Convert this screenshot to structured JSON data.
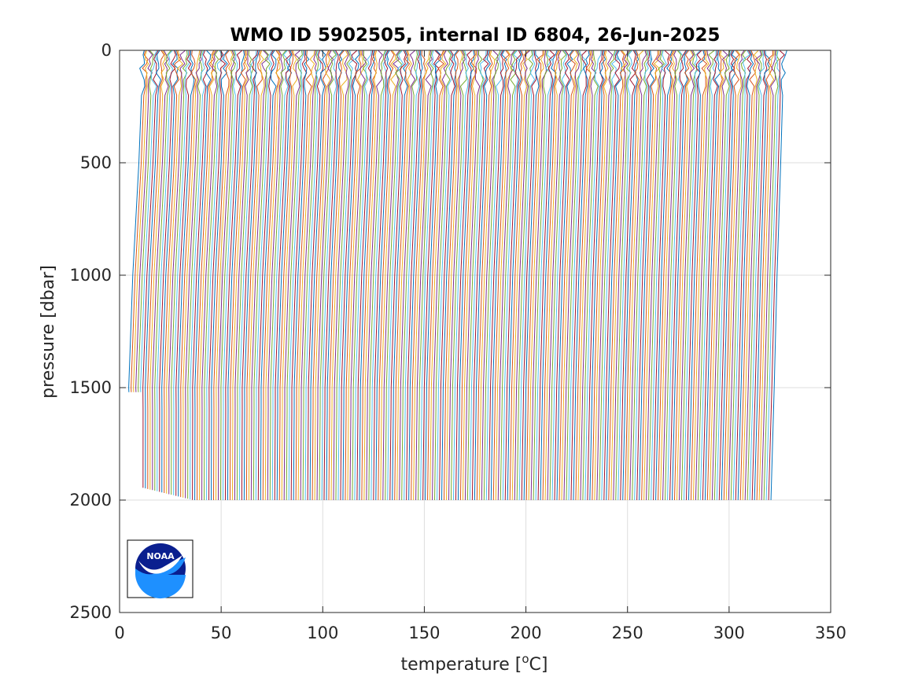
{
  "chart_data": {
    "type": "line",
    "title": "WMO ID 5902505, internal ID 6804, 26-Jun-2025",
    "xlabel": "temperature [",
    "xlabel_sup": "o",
    "xlabel_tail": "C]",
    "ylabel": "pressure [dbar]",
    "xlim": [
      0,
      350
    ],
    "ylim": [
      0,
      2500
    ],
    "y_reversed": true,
    "grid": true,
    "x_ticks": [
      "0",
      "50",
      "100",
      "150",
      "200",
      "250",
      "300",
      "350"
    ],
    "y_ticks": [
      "0",
      "500",
      "1000",
      "1500",
      "2000",
      "2500"
    ],
    "series_description": "Waterfall of temperature profiles, each successive profile offset by about 1.17 along x; per-profile values not individually legible",
    "profile_count": 274,
    "profile_offset_step": 1.17,
    "first_profile": {
      "pressure": [
        0,
        150,
        500,
        1000,
        1500,
        1520
      ],
      "temperature": [
        11.5,
        11.0,
        9.5,
        6.5,
        4.5,
        4.6
      ]
    },
    "last_profile": {
      "pressure": [
        0,
        150,
        500,
        1000,
        1500,
        2000
      ],
      "temperature": [
        327.2,
        326.5,
        325.4,
        323.6,
        322.2,
        320.6
      ]
    },
    "colors": [
      "#0072bd",
      "#d95319",
      "#edb120",
      "#7e2f8e",
      "#77ac30",
      "#4dbeee",
      "#a2142f"
    ]
  },
  "logo": {
    "text": "NOAA",
    "colors": {
      "navy": "#0a1f8f",
      "blue": "#1e90ff"
    }
  }
}
